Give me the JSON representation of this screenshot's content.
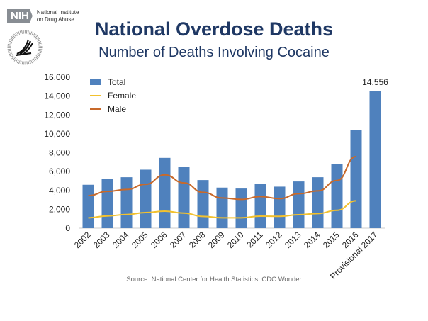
{
  "logo": {
    "nih": "NIH",
    "institute_line1": "National Institute",
    "institute_line2": "on Drug Abuse",
    "hhs_seal": "Department of Health & Human Services USA"
  },
  "chart_data": {
    "type": "bar",
    "title": "National Overdose Deaths",
    "subtitle": "Number of Deaths Involving Cocaine",
    "source": "Source: National Center for Health Statistics, CDC Wonder",
    "categories": [
      "2002",
      "2003",
      "2004",
      "2005",
      "2006",
      "2007",
      "2008",
      "2009",
      "2010",
      "2011",
      "2012",
      "2013",
      "2014",
      "2015",
      "2016",
      "Provisional 2017"
    ],
    "ylim": [
      0,
      16000
    ],
    "yticks": [
      "0",
      "2,000",
      "4,000",
      "6,000",
      "8,000",
      "10,000",
      "12,000",
      "14,000",
      "16,000"
    ],
    "grid": false,
    "legend_position": "top-left",
    "series": [
      {
        "name": "Total",
        "type": "bar",
        "color": "#4f81bd",
        "values": [
          4600,
          5200,
          5400,
          6200,
          7450,
          6500,
          5100,
          4300,
          4200,
          4700,
          4400,
          4950,
          5400,
          6800,
          10400,
          14556
        ]
      },
      {
        "name": "Female",
        "type": "line",
        "color": "#f2c12e",
        "values": [
          1100,
          1300,
          1450,
          1650,
          1800,
          1600,
          1250,
          1100,
          1100,
          1280,
          1260,
          1430,
          1550,
          1900,
          2900,
          null
        ]
      },
      {
        "name": "Male",
        "type": "line",
        "color": "#c8692a",
        "values": [
          3450,
          3900,
          4100,
          4650,
          5650,
          4800,
          3800,
          3200,
          3050,
          3350,
          3130,
          3650,
          3950,
          5050,
          7600,
          null
        ]
      }
    ],
    "data_labels": [
      {
        "category": "Provisional 2017",
        "text": "14,556"
      }
    ]
  }
}
